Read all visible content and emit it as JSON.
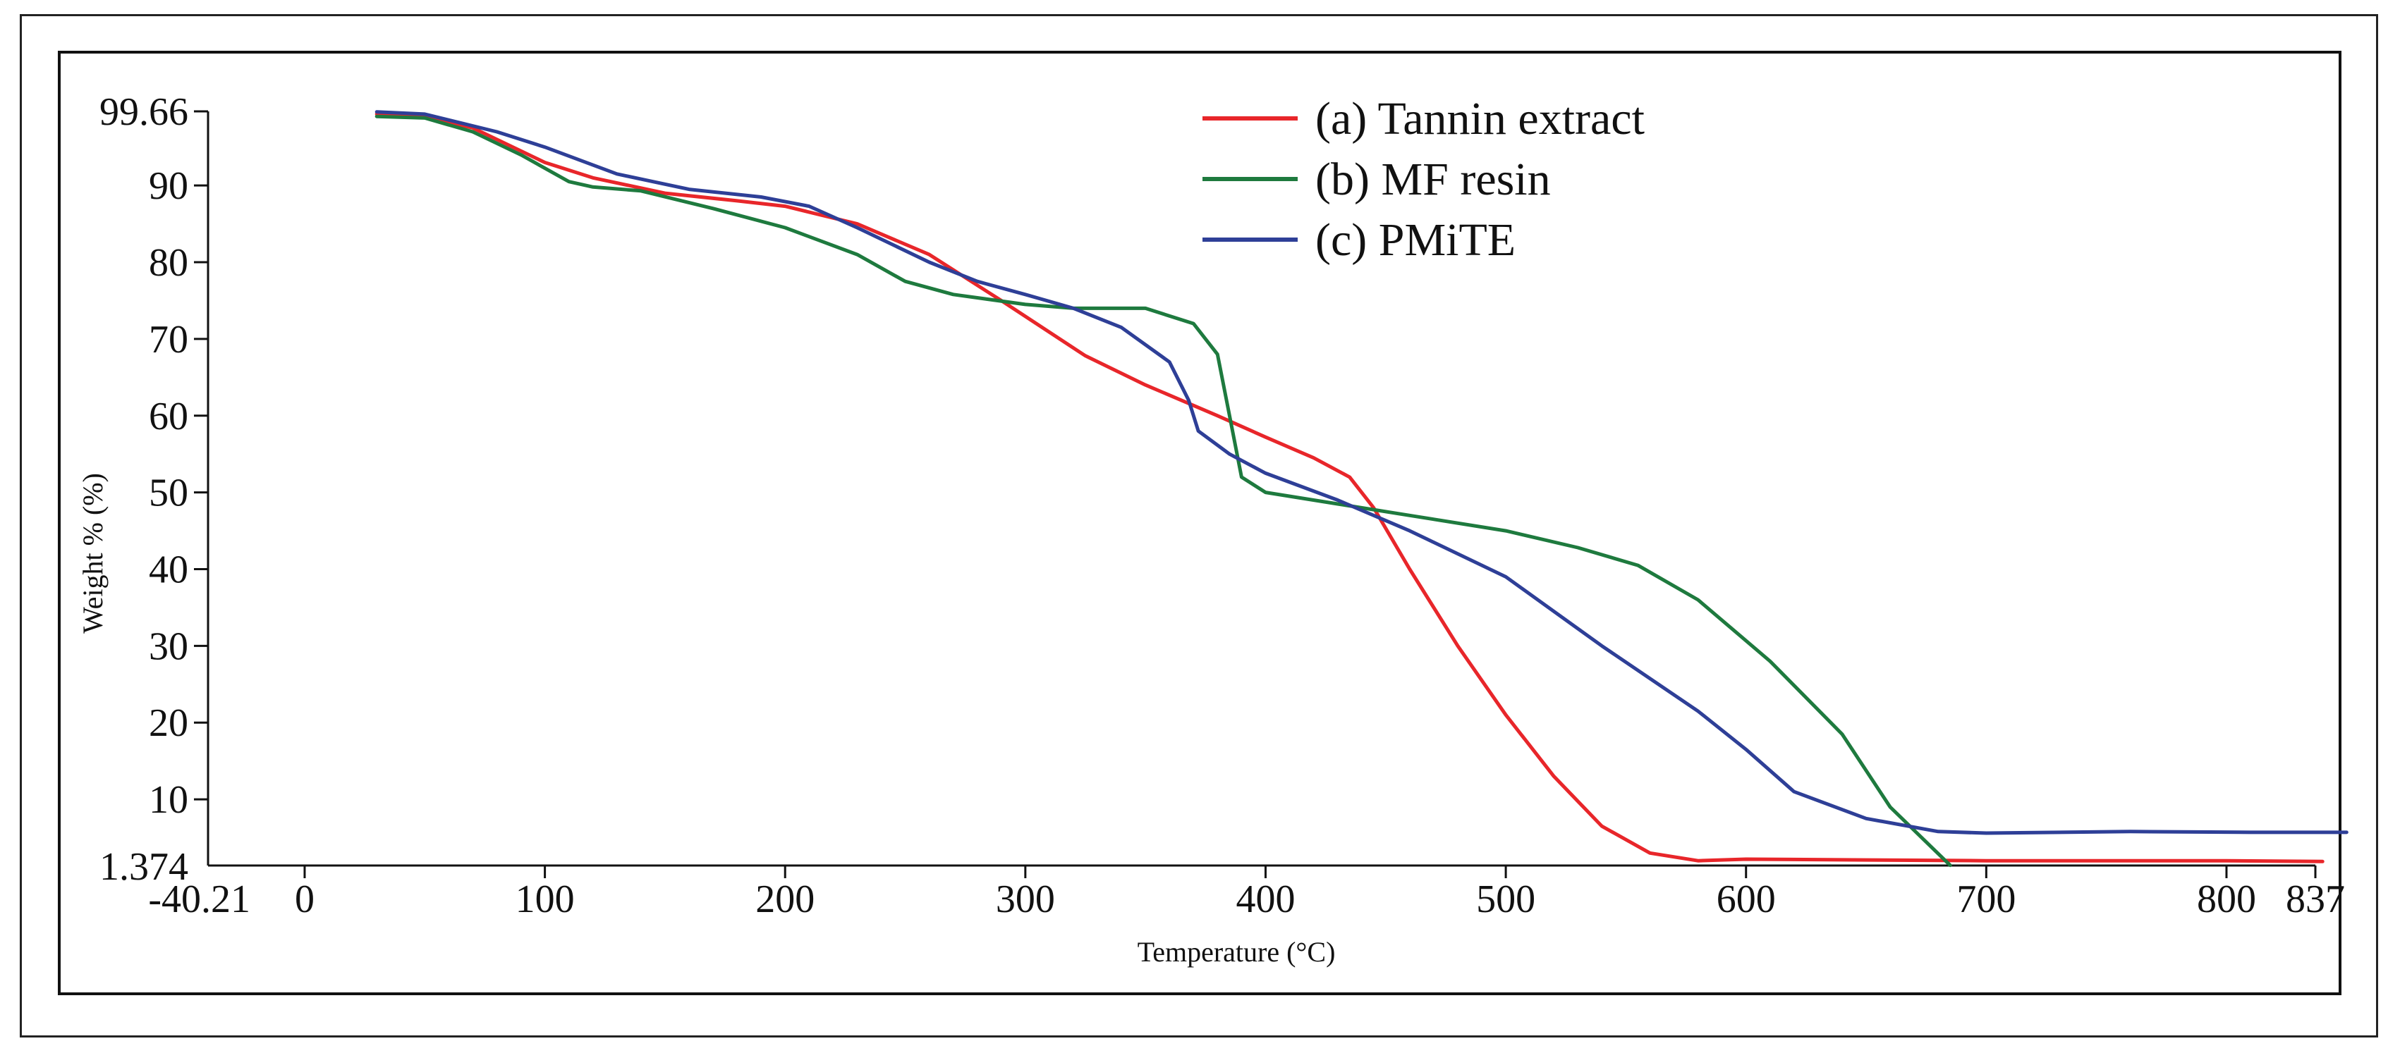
{
  "chart_data": {
    "type": "line",
    "title": "",
    "xlabel": "Temperature (°C)",
    "ylabel": "Weight % (%)",
    "xlim": [
      -40.21,
      837
    ],
    "ylim": [
      1.374,
      99.66
    ],
    "xticks": [
      0,
      100,
      200,
      300,
      400,
      500,
      600,
      700,
      800
    ],
    "yticks": [
      10,
      20,
      30,
      40,
      50,
      60,
      70,
      80,
      90
    ],
    "x_min_label": "-40.21",
    "x_max_label": "837",
    "y_min_label": "1.374",
    "y_max_label": "99.66",
    "legend_position": "top-center",
    "series": [
      {
        "name": "(a) Tannin extract",
        "color": "#e8262a",
        "points": [
          [
            30,
            99.3
          ],
          [
            50,
            99.0
          ],
          [
            70,
            97.5
          ],
          [
            100,
            93.0
          ],
          [
            120,
            91.0
          ],
          [
            150,
            89.0
          ],
          [
            180,
            88.0
          ],
          [
            200,
            87.3
          ],
          [
            230,
            85.0
          ],
          [
            260,
            81.0
          ],
          [
            290,
            75.0
          ],
          [
            325,
            67.8
          ],
          [
            350,
            64.0
          ],
          [
            380,
            60.0
          ],
          [
            400,
            57.2
          ],
          [
            420,
            54.5
          ],
          [
            435,
            52.0
          ],
          [
            445,
            48.0
          ],
          [
            460,
            40.0
          ],
          [
            480,
            30.0
          ],
          [
            500,
            21.0
          ],
          [
            520,
            13.0
          ],
          [
            540,
            6.5
          ],
          [
            560,
            3.0
          ],
          [
            580,
            2.0
          ],
          [
            600,
            2.2
          ],
          [
            650,
            2.1
          ],
          [
            700,
            2.0
          ],
          [
            800,
            2.0
          ],
          [
            840,
            1.9
          ]
        ]
      },
      {
        "name": "(b) MF resin",
        "color": "#1e7a3e",
        "points": [
          [
            30,
            99.0
          ],
          [
            50,
            98.8
          ],
          [
            70,
            97.0
          ],
          [
            90,
            94.0
          ],
          [
            110,
            90.5
          ],
          [
            120,
            89.8
          ],
          [
            140,
            89.3
          ],
          [
            170,
            87.0
          ],
          [
            200,
            84.5
          ],
          [
            230,
            81.0
          ],
          [
            250,
            77.5
          ],
          [
            270,
            75.8
          ],
          [
            300,
            74.5
          ],
          [
            320,
            74.0
          ],
          [
            350,
            74.0
          ],
          [
            370,
            72.0
          ],
          [
            380,
            68.0
          ],
          [
            385,
            60.0
          ],
          [
            390,
            52.0
          ],
          [
            400,
            50.0
          ],
          [
            430,
            48.5
          ],
          [
            460,
            47.0
          ],
          [
            500,
            45.0
          ],
          [
            530,
            42.8
          ],
          [
            555,
            40.5
          ],
          [
            580,
            36.0
          ],
          [
            610,
            28.0
          ],
          [
            640,
            18.5
          ],
          [
            660,
            9.0
          ],
          [
            685,
            1.4
          ]
        ]
      },
      {
        "name": "(c) PMiTE",
        "color": "#2e3f97",
        "points": [
          [
            30,
            99.6
          ],
          [
            50,
            99.3
          ],
          [
            80,
            97.0
          ],
          [
            100,
            95.0
          ],
          [
            130,
            91.5
          ],
          [
            160,
            89.5
          ],
          [
            190,
            88.5
          ],
          [
            210,
            87.3
          ],
          [
            230,
            84.5
          ],
          [
            260,
            80.0
          ],
          [
            280,
            77.5
          ],
          [
            300,
            75.8
          ],
          [
            320,
            74.0
          ],
          [
            340,
            71.5
          ],
          [
            360,
            67.0
          ],
          [
            368,
            62.0
          ],
          [
            372,
            58.0
          ],
          [
            385,
            55.0
          ],
          [
            400,
            52.5
          ],
          [
            430,
            49.0
          ],
          [
            460,
            45.0
          ],
          [
            500,
            39.0
          ],
          [
            540,
            30.0
          ],
          [
            580,
            21.5
          ],
          [
            600,
            16.5
          ],
          [
            620,
            11.0
          ],
          [
            650,
            7.5
          ],
          [
            680,
            5.8
          ],
          [
            700,
            5.6
          ],
          [
            760,
            5.8
          ],
          [
            810,
            5.7
          ],
          [
            850,
            5.7
          ]
        ]
      }
    ]
  }
}
